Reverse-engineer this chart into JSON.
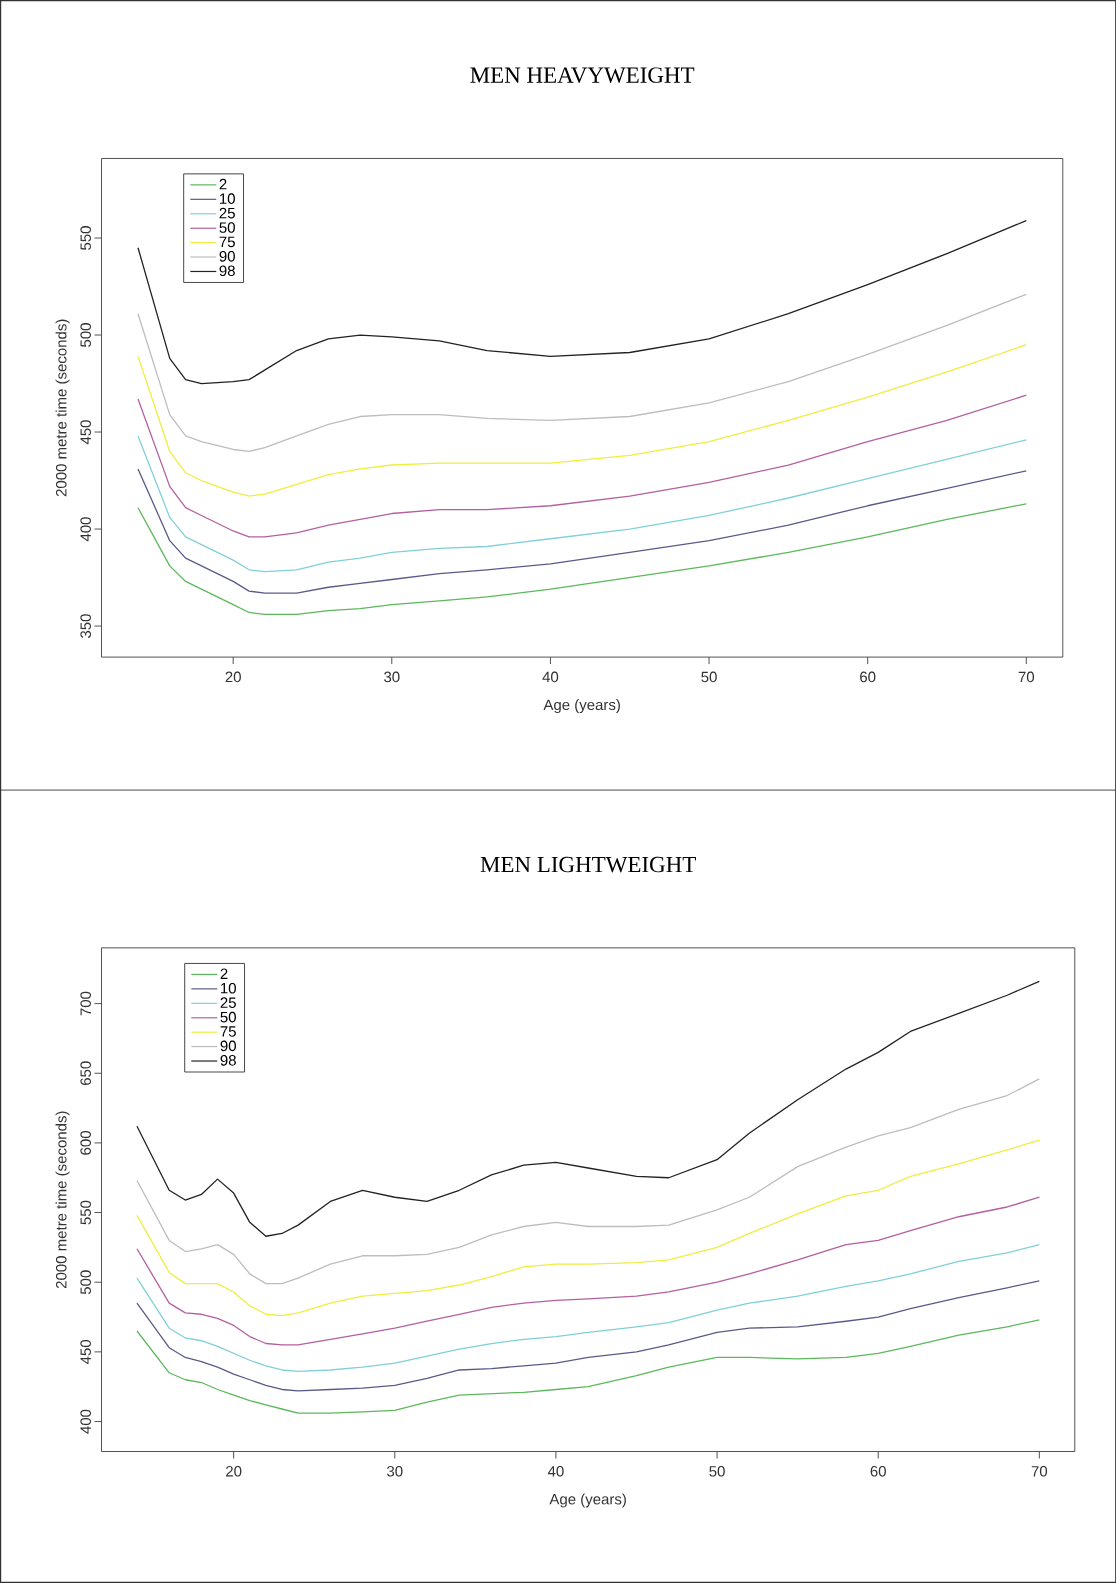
{
  "chart_data": [
    {
      "type": "line",
      "title": "MEN HEAVYWEIGHT",
      "xlabel": "Age (years)",
      "ylabel": "2000 metre time (seconds)",
      "legend": "top left",
      "xlim": [
        11.7,
        72.3
      ],
      "ylim": [
        334,
        591
      ],
      "xticks": [
        20,
        30,
        40,
        50,
        60,
        70
      ],
      "yticks": [
        350,
        400,
        450,
        500,
        550
      ],
      "x": [
        14,
        16,
        17,
        18,
        20,
        21,
        22,
        24,
        26,
        28,
        30,
        33,
        36,
        40,
        45,
        50,
        55,
        60,
        65,
        70
      ],
      "series": [
        {
          "name": "2",
          "color": "#5cb85c",
          "values": [
            411,
            381,
            373,
            369,
            361,
            357,
            356,
            356,
            358,
            359,
            361,
            363,
            365,
            369,
            375,
            381,
            388,
            396,
            405,
            413
          ]
        },
        {
          "name": "10",
          "color": "#5a5a8a",
          "values": [
            431,
            394,
            385,
            381,
            373,
            368,
            367,
            367,
            370,
            372,
            374,
            377,
            379,
            382,
            388,
            394,
            402,
            412,
            421,
            430
          ]
        },
        {
          "name": "25",
          "color": "#7fd0d8",
          "values": [
            448,
            406,
            396,
            392,
            384,
            379,
            378,
            379,
            383,
            385,
            388,
            390,
            391,
            395,
            400,
            407,
            416,
            426,
            436,
            446
          ]
        },
        {
          "name": "50",
          "color": "#b45fa0",
          "values": [
            467,
            422,
            411,
            407,
            399,
            396,
            396,
            398,
            402,
            405,
            408,
            410,
            410,
            412,
            417,
            424,
            433,
            445,
            456,
            469
          ]
        },
        {
          "name": "75",
          "color": "#eeee40",
          "values": [
            489,
            440,
            429,
            425,
            419,
            417,
            418,
            423,
            428,
            431,
            433,
            434,
            434,
            434,
            438,
            445,
            456,
            468,
            481,
            495
          ]
        },
        {
          "name": "90",
          "color": "#bdbdbd",
          "values": [
            511,
            459,
            448,
            445,
            441,
            440,
            442,
            448,
            454,
            458,
            459,
            459,
            457,
            456,
            458,
            465,
            476,
            490,
            505,
            521
          ]
        },
        {
          "name": "98",
          "color": "#222222",
          "values": [
            545,
            488,
            477,
            475,
            476,
            477,
            482,
            492,
            498,
            500,
            499,
            497,
            492,
            489,
            491,
            498,
            511,
            526,
            542,
            559
          ]
        }
      ]
    },
    {
      "type": "line",
      "title": "MEN LIGHTWEIGHT",
      "xlabel": "Age (years)",
      "ylabel": "2000 metre time (seconds)",
      "legend": "top left",
      "xlim": [
        11.8,
        72.2
      ],
      "ylim": [
        378.5,
        740
      ],
      "xticks": [
        20,
        30,
        40,
        50,
        60,
        70
      ],
      "yticks": [
        400,
        450,
        500,
        550,
        600,
        650,
        700
      ],
      "x": [
        14,
        16,
        17,
        18,
        19,
        20,
        21,
        22,
        23,
        24,
        26,
        28,
        30,
        32,
        34,
        36,
        38,
        40,
        42,
        45,
        47,
        50,
        52,
        55,
        58,
        60,
        62,
        65,
        68,
        70
      ],
      "series": [
        {
          "name": "2",
          "color": "#5cb85c",
          "values": [
            465,
            435,
            430,
            428,
            423,
            419,
            415,
            412,
            409,
            406,
            406,
            407,
            408,
            414,
            419,
            420,
            421,
            423,
            425,
            433,
            439,
            446,
            446,
            445,
            446,
            449,
            454,
            462,
            468,
            473
          ]
        },
        {
          "name": "10",
          "color": "#5a5a8a",
          "values": [
            485,
            453,
            446,
            443,
            439,
            434,
            430,
            426,
            423,
            422,
            423,
            424,
            426,
            431,
            437,
            438,
            440,
            442,
            446,
            450,
            455,
            464,
            467,
            468,
            472,
            475,
            481,
            489,
            496,
            501
          ]
        },
        {
          "name": "25",
          "color": "#7fd0d8",
          "values": [
            503,
            467,
            460,
            458,
            454,
            449,
            444,
            440,
            437,
            436,
            437,
            439,
            442,
            447,
            452,
            456,
            459,
            461,
            464,
            468,
            471,
            480,
            485,
            490,
            497,
            501,
            506,
            515,
            521,
            527
          ]
        },
        {
          "name": "50",
          "color": "#b45fa0",
          "values": [
            524,
            485,
            478,
            477,
            474,
            469,
            461,
            456,
            455,
            455,
            459,
            463,
            467,
            472,
            477,
            482,
            485,
            487,
            488,
            490,
            493,
            500,
            506,
            516,
            527,
            530,
            537,
            547,
            554,
            561
          ]
        },
        {
          "name": "75",
          "color": "#eeee40",
          "values": [
            548,
            507,
            499,
            499,
            499,
            493,
            483,
            477,
            476,
            478,
            485,
            490,
            492,
            494,
            498,
            504,
            511,
            513,
            513,
            514,
            516,
            525,
            535,
            549,
            562,
            566,
            576,
            585,
            595,
            602
          ]
        },
        {
          "name": "90",
          "color": "#bdbdbd",
          "values": [
            573,
            530,
            522,
            524,
            527,
            520,
            506,
            499,
            499,
            503,
            513,
            519,
            519,
            520,
            525,
            534,
            540,
            543,
            540,
            540,
            541,
            552,
            561,
            583,
            597,
            605,
            611,
            624,
            634,
            646
          ]
        },
        {
          "name": "98",
          "color": "#222222",
          "values": [
            612,
            566,
            559,
            563,
            574,
            564,
            543,
            533,
            535,
            541,
            558,
            566,
            561,
            558,
            566,
            577,
            584,
            586,
            582,
            576,
            575,
            588,
            607,
            631,
            653,
            665,
            680,
            693,
            706,
            716
          ]
        }
      ]
    }
  ]
}
